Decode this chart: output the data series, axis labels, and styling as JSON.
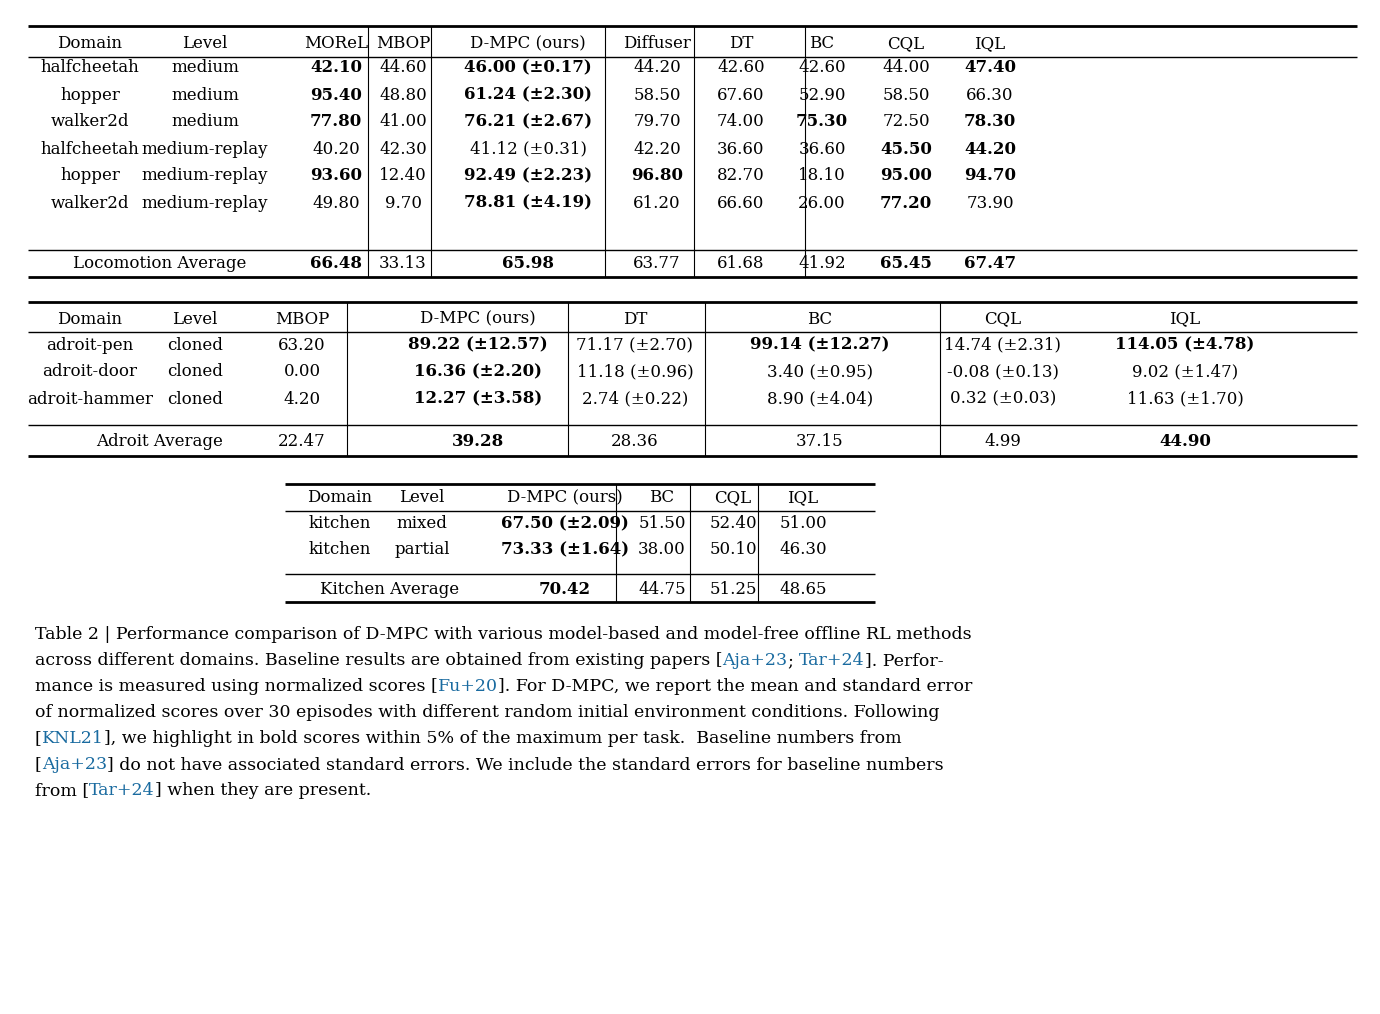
{
  "bg_color": "#ffffff",
  "table1": {
    "headers": [
      "Domain",
      "Level",
      "MOReL",
      "MBOP",
      "D-MPC (ours)",
      "Diffuser",
      "DT",
      "BC",
      "CQL",
      "IQL"
    ],
    "rows": [
      [
        "halfcheetah",
        "medium",
        "42.10",
        "44.60",
        "46.00 (±0.17)",
        "44.20",
        "42.60",
        "42.60",
        "44.00",
        "47.40"
      ],
      [
        "hopper",
        "medium",
        "95.40",
        "48.80",
        "61.24 (±2.30)",
        "58.50",
        "67.60",
        "52.90",
        "58.50",
        "66.30"
      ],
      [
        "walker2d",
        "medium",
        "77.80",
        "41.00",
        "76.21 (±2.67)",
        "79.70",
        "74.00",
        "75.30",
        "72.50",
        "78.30"
      ],
      [
        "halfcheetah",
        "medium-replay",
        "40.20",
        "42.30",
        "41.12 (±0.31)",
        "42.20",
        "36.60",
        "36.60",
        "45.50",
        "44.20"
      ],
      [
        "hopper",
        "medium-replay",
        "93.60",
        "12.40",
        "92.49 (±2.23)",
        "96.80",
        "82.70",
        "18.10",
        "95.00",
        "94.70"
      ],
      [
        "walker2d",
        "medium-replay",
        "49.80",
        "9.70",
        "78.81 (±4.19)",
        "61.20",
        "66.60",
        "26.00",
        "77.20",
        "73.90"
      ]
    ],
    "avg_row": [
      "Locomotion Average",
      "",
      "66.48",
      "33.13",
      "65.98",
      "63.77",
      "61.68",
      "41.92",
      "65.45",
      "67.47"
    ],
    "bold_cells": {
      "0": [
        2,
        4,
        9
      ],
      "1": [
        2,
        4
      ],
      "2": [
        2,
        4,
        7,
        9
      ],
      "3": [
        8,
        9
      ],
      "4": [
        2,
        4,
        5,
        8,
        9
      ],
      "5": [
        4,
        8
      ]
    },
    "avg_bold": [
      2,
      4,
      8,
      9
    ],
    "col_aligns": [
      "center",
      "center",
      "center",
      "center",
      "center",
      "center",
      "center",
      "center",
      "center",
      "center"
    ],
    "vsep_after": [
      3,
      4,
      6,
      7,
      8
    ]
  },
  "table2": {
    "headers": [
      "Domain",
      "Level",
      "MBOP",
      "D-MPC (ours)",
      "DT",
      "BC",
      "CQL",
      "IQL"
    ],
    "rows": [
      [
        "adroit-pen",
        "cloned",
        "63.20",
        "89.22 (±12.57)",
        "71.17 (±2.70)",
        "99.14 (±12.27)",
        "14.74 (±2.31)",
        "114.05 (±4.78)"
      ],
      [
        "adroit-door",
        "cloned",
        "0.00",
        "16.36 (±2.20)",
        "11.18 (±0.96)",
        "3.40 (±0.95)",
        "-0.08 (±0.13)",
        "9.02 (±1.47)"
      ],
      [
        "adroit-hammer",
        "cloned",
        "4.20",
        "12.27 (±3.58)",
        "2.74 (±0.22)",
        "8.90 (±4.04)",
        "0.32 (±0.03)",
        "11.63 (±1.70)"
      ]
    ],
    "avg_row": [
      "Adroit Average",
      "",
      "22.47",
      "39.28",
      "28.36",
      "37.15",
      "4.99",
      "44.90"
    ],
    "bold_cells": {
      "0": [
        3,
        5,
        7
      ],
      "1": [
        3
      ],
      "2": [
        3
      ]
    },
    "avg_bold": [
      3,
      7
    ],
    "vsep_after": [
      3,
      4,
      5,
      7
    ]
  },
  "table3": {
    "headers": [
      "Domain",
      "Level",
      "D-MPC (ours)",
      "BC",
      "CQL",
      "IQL"
    ],
    "rows": [
      [
        "kitchen",
        "mixed",
        "67.50 (±2.09)",
        "51.50",
        "52.40",
        "51.00"
      ],
      [
        "kitchen",
        "partial",
        "73.33 (±1.64)",
        "38.00",
        "50.10",
        "46.30"
      ]
    ],
    "avg_row": [
      "Kitchen Average",
      "",
      "70.42",
      "44.75",
      "51.25",
      "48.65"
    ],
    "bold_cells": {
      "0": [
        2
      ],
      "1": [
        2
      ]
    },
    "avg_bold": [
      2
    ],
    "vsep_after": [
      3,
      4,
      5
    ]
  },
  "ref_color": "#1a6ba0",
  "font_size": 12.0,
  "cap_font_size": 12.5
}
